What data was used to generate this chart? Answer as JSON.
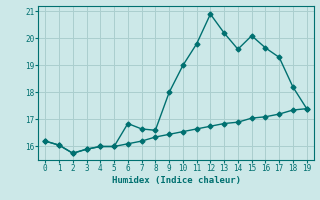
{
  "xlabel": "Humidex (Indice chaleur)",
  "x": [
    0,
    1,
    2,
    3,
    4,
    5,
    6,
    7,
    8,
    9,
    10,
    11,
    12,
    13,
    14,
    15,
    16,
    17,
    18,
    19
  ],
  "line1": [
    16.2,
    16.05,
    15.75,
    15.9,
    16.0,
    16.0,
    16.85,
    16.65,
    16.6,
    18.0,
    19.0,
    19.8,
    20.9,
    20.2,
    19.6,
    20.1,
    19.65,
    19.3,
    18.2,
    17.4
  ],
  "line2": [
    16.2,
    16.05,
    15.75,
    15.9,
    16.0,
    16.0,
    16.1,
    16.2,
    16.35,
    16.45,
    16.55,
    16.65,
    16.75,
    16.85,
    16.9,
    17.05,
    17.1,
    17.2,
    17.35,
    17.4
  ],
  "line_color": "#007070",
  "bg_color": "#cce8e8",
  "grid_color": "#aacece",
  "ylim": [
    15.5,
    21.2
  ],
  "yticks": [
    16,
    17,
    18,
    19,
    20,
    21
  ],
  "marker": "D",
  "markersize": 2.5,
  "linewidth": 1.0
}
